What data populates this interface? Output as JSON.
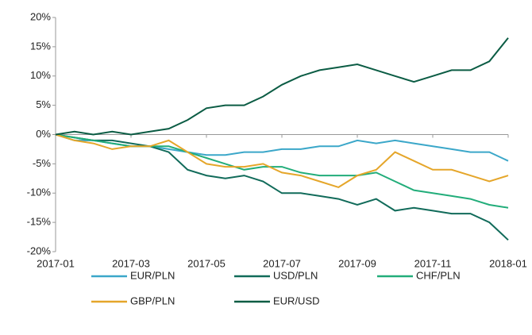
{
  "chart_data": {
    "type": "line",
    "x": [
      0,
      0.5,
      1,
      1.5,
      2,
      2.5,
      3,
      3.5,
      4,
      4.5,
      5,
      5.5,
      6,
      6.5,
      7,
      7.5,
      8,
      8.5,
      9,
      9.5,
      10,
      10.5,
      11,
      11.5,
      12
    ],
    "xlim": [
      0,
      12
    ],
    "xticks": [
      {
        "value": 0,
        "label": "2017-01"
      },
      {
        "value": 2,
        "label": "2017-03"
      },
      {
        "value": 4,
        "label": "2017-05"
      },
      {
        "value": 6,
        "label": "2017-07"
      },
      {
        "value": 8,
        "label": "2017-09"
      },
      {
        "value": 10,
        "label": "2017-11"
      },
      {
        "value": 12,
        "label": "2018-01"
      }
    ],
    "ylim": [
      -20,
      20
    ],
    "yticks": [
      {
        "value": 20,
        "label": "20%"
      },
      {
        "value": 15,
        "label": "15%"
      },
      {
        "value": 10,
        "label": "10%"
      },
      {
        "value": 5,
        "label": "5%"
      },
      {
        "value": 0,
        "label": "0%"
      },
      {
        "value": -5,
        "label": "-5%"
      },
      {
        "value": -10,
        "label": "-10%"
      },
      {
        "value": -15,
        "label": "-15%"
      },
      {
        "value": -20,
        "label": "-20%"
      }
    ],
    "series": [
      {
        "name": "EUR/PLN",
        "color": "#3ba7c9",
        "values": [
          0,
          -1,
          -1,
          -1.5,
          -2,
          -2,
          -2.5,
          -3,
          -3.5,
          -3.5,
          -3,
          -3,
          -2.5,
          -2.5,
          -2,
          -2,
          -1,
          -1.5,
          -1,
          -1.5,
          -2,
          -2.5,
          -3,
          -3,
          -4.5
        ]
      },
      {
        "name": "USD/PLN",
        "color": "#116b5a",
        "values": [
          0,
          -0.5,
          -1,
          -1,
          -1.5,
          -2,
          -3,
          -6,
          -7,
          -7.5,
          -7,
          -8,
          -10,
          -10,
          -10.5,
          -11,
          -12,
          -11,
          -13,
          -12.5,
          -13,
          -13.5,
          -13.5,
          -15,
          -18
        ]
      },
      {
        "name": "CHF/PLN",
        "color": "#22ad7a",
        "values": [
          0,
          -0.5,
          -1,
          -1.5,
          -2,
          -2,
          -2,
          -3,
          -4,
          -5,
          -6,
          -5.5,
          -5.5,
          -6.5,
          -7,
          -7,
          -7,
          -6.5,
          -8,
          -9.5,
          -10,
          -10.5,
          -11,
          -12,
          -12.5
        ]
      },
      {
        "name": "GBP/PLN",
        "color": "#e5a62a",
        "values": [
          0,
          -1,
          -1.5,
          -2.5,
          -2,
          -2,
          -1,
          -3,
          -5,
          -5.5,
          -5.5,
          -5,
          -6.5,
          -7,
          -8,
          -9,
          -7,
          -6,
          -3,
          -4.5,
          -6,
          -6,
          -7,
          -8,
          -7
        ]
      },
      {
        "name": "EUR/USD",
        "color": "#0b5c44",
        "values": [
          0,
          0.5,
          0,
          0.5,
          0,
          0.5,
          1,
          2.5,
          4.5,
          5,
          5,
          6.5,
          8.5,
          10,
          11,
          11.5,
          12,
          11,
          10,
          9,
          10,
          11,
          11,
          12.5,
          16.5
        ]
      }
    ]
  }
}
